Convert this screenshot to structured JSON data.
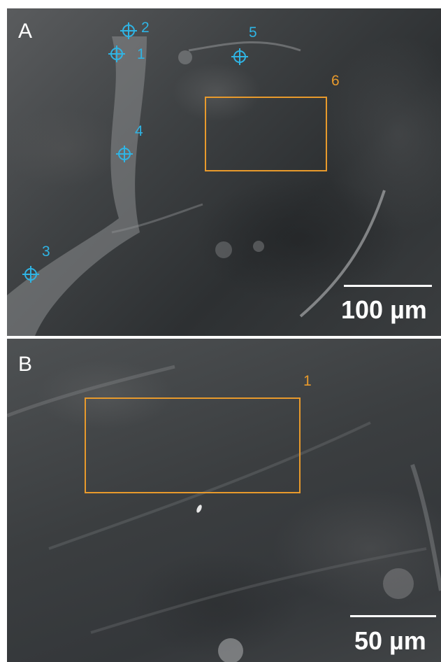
{
  "panels": {
    "a": {
      "label": "A",
      "point_markers": [
        {
          "number": "1"
        },
        {
          "number": "2"
        },
        {
          "number": "3"
        },
        {
          "number": "4"
        },
        {
          "number": "5"
        }
      ],
      "roi": {
        "number": "6"
      },
      "scale_bar": {
        "text": "100 µm"
      }
    },
    "b": {
      "label": "B",
      "roi": {
        "number": "1"
      },
      "scale_bar": {
        "text": "50 µm"
      }
    }
  },
  "colors": {
    "marker": "#2fb4e4",
    "roi": "#e89a2c",
    "label": "#ffffff"
  },
  "icons": {
    "marker_icon": "crosshair-circle-icon"
  }
}
